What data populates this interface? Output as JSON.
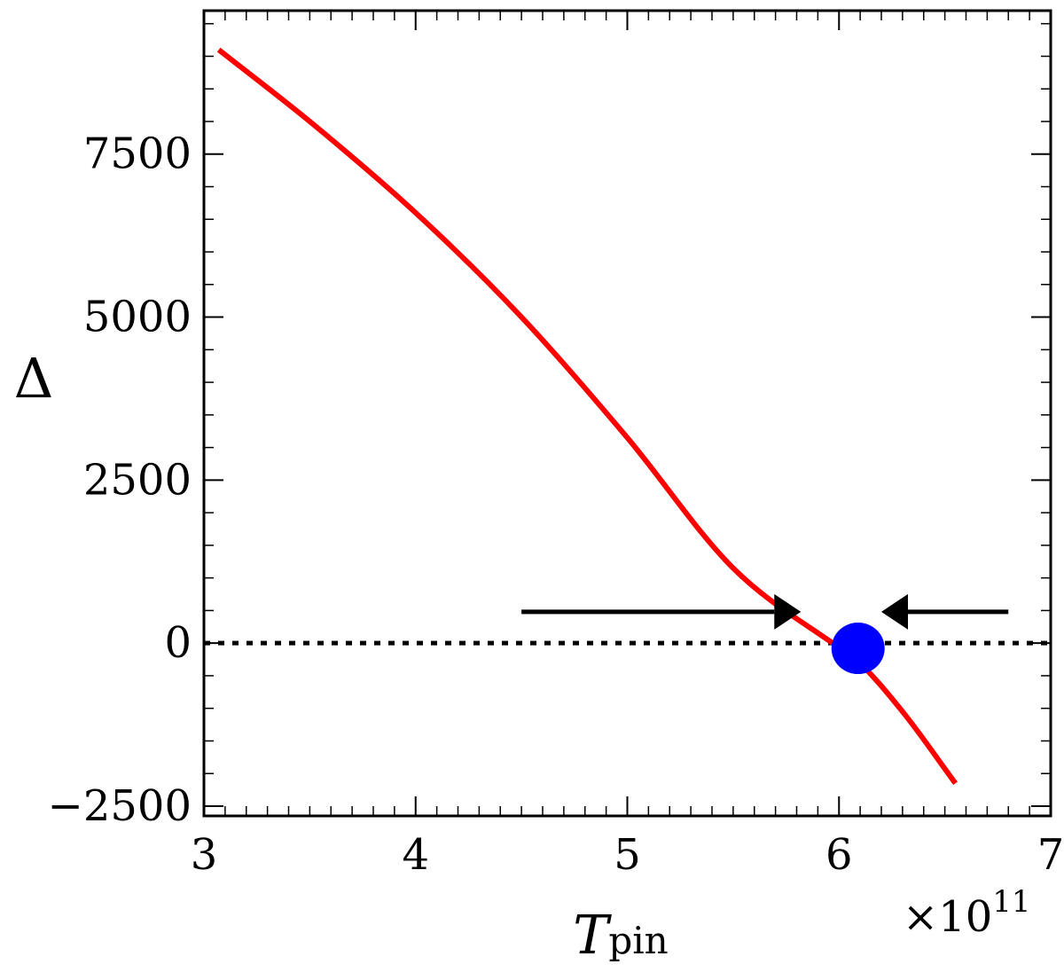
{
  "chart_data": {
    "type": "line",
    "title": "",
    "xlabel": "T",
    "xlabel_subscript": "pin",
    "ylabel": "Δ",
    "x_multiplier_label": "×10",
    "x_multiplier_exponent": "11",
    "xlim": [
      3,
      7
    ],
    "ylim": [
      -2650,
      9700
    ],
    "x_ticks": [
      3,
      4,
      5,
      6,
      7
    ],
    "x_tick_labels": [
      "3",
      "4",
      "5",
      "6",
      "7"
    ],
    "y_ticks": [
      -2500,
      0,
      2500,
      5000,
      7500
    ],
    "y_tick_labels": [
      "−2500",
      "0",
      "2500",
      "5000",
      "7500"
    ],
    "grid": false,
    "colors": {
      "curve": "#ff0000",
      "point": "#0000ff",
      "reference_line": "#000000",
      "arrows": "#000000",
      "axes": "#000000"
    },
    "series": [
      {
        "x": [
          3.07,
          3.5,
          4.0,
          4.5,
          5.0,
          5.5,
          6.0,
          6.08,
          6.3,
          6.55
        ],
        "y": [
          9100,
          8000,
          6600,
          5000,
          3150,
          1150,
          -70,
          -250,
          -1050,
          -2150
        ]
      }
    ],
    "reference_line": {
      "y": 0,
      "style": "dotted"
    },
    "marked_point": {
      "x": 6.09,
      "y": -80
    },
    "arrows": [
      {
        "from_x": 4.5,
        "to_x": 5.82,
        "y": 480,
        "direction": "right"
      },
      {
        "from_x": 6.8,
        "to_x": 6.2,
        "y": 480,
        "direction": "left"
      }
    ]
  }
}
